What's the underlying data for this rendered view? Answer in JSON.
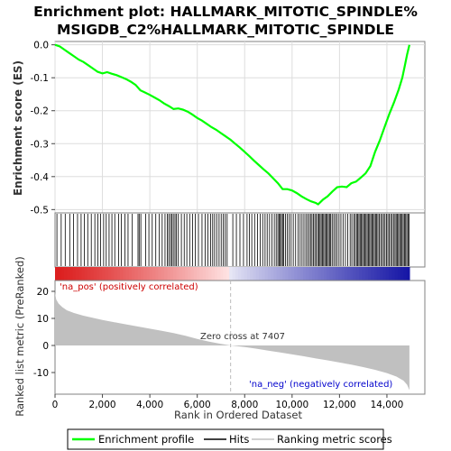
{
  "chart_data": {
    "type": "line",
    "title_line1": "Enrichment plot: HALLMARK_MITOTIC_SPINDLE%",
    "title_line2": "MSIGDB_C2%HALLMARK_MITOTIC_SPINDLE",
    "es_ylabel": "Enrichment score (ES)",
    "metric_ylabel": "Ranked list metric (PreRanked)",
    "xlabel": "Rank in Ordered Dataset",
    "xlim": [
      0,
      15600
    ],
    "es_ylim": [
      -0.51,
      0.01
    ],
    "metric_ylim": [
      -18,
      24
    ],
    "x_ticks": [
      0,
      2000,
      4000,
      6000,
      8000,
      10000,
      12000,
      14000
    ],
    "x_tick_labels": [
      "0",
      "2,000",
      "4,000",
      "6,000",
      "8,000",
      "10,000",
      "12,000",
      "14,000"
    ],
    "es_ticks": [
      0.0,
      -0.1,
      -0.2,
      -0.3,
      -0.4,
      -0.5
    ],
    "es_tick_labels": [
      "0.0",
      "-0.1",
      "-0.2",
      "-0.3",
      "-0.4",
      "-0.5"
    ],
    "metric_ticks": [
      20,
      10,
      0,
      -10
    ],
    "metric_tick_labels": [
      "20",
      "10",
      "0",
      "-10"
    ],
    "n_genes": 14950,
    "zero_cross": 7407,
    "zero_cross_label": "Zero cross at 7407",
    "pos_label": "'na_pos' (positively correlated)",
    "neg_label": "'na_neg' (negatively correlated)",
    "es_curve": [
      [
        0,
        0.0
      ],
      [
        200,
        -0.005
      ],
      [
        400,
        -0.015
      ],
      [
        600,
        -0.025
      ],
      [
        800,
        -0.035
      ],
      [
        1000,
        -0.045
      ],
      [
        1200,
        -0.052
      ],
      [
        1400,
        -0.062
      ],
      [
        1600,
        -0.072
      ],
      [
        1800,
        -0.082
      ],
      [
        2000,
        -0.087
      ],
      [
        2200,
        -0.083
      ],
      [
        2400,
        -0.088
      ],
      [
        2600,
        -0.092
      ],
      [
        2800,
        -0.098
      ],
      [
        3000,
        -0.104
      ],
      [
        3200,
        -0.112
      ],
      [
        3400,
        -0.122
      ],
      [
        3600,
        -0.138
      ],
      [
        3800,
        -0.145
      ],
      [
        4000,
        -0.152
      ],
      [
        4200,
        -0.16
      ],
      [
        4400,
        -0.168
      ],
      [
        4600,
        -0.178
      ],
      [
        4800,
        -0.186
      ],
      [
        5000,
        -0.195
      ],
      [
        5200,
        -0.193
      ],
      [
        5400,
        -0.197
      ],
      [
        5600,
        -0.203
      ],
      [
        5800,
        -0.212
      ],
      [
        6000,
        -0.222
      ],
      [
        6200,
        -0.23
      ],
      [
        6400,
        -0.24
      ],
      [
        6600,
        -0.25
      ],
      [
        6800,
        -0.258
      ],
      [
        7000,
        -0.268
      ],
      [
        7200,
        -0.278
      ],
      [
        7400,
        -0.288
      ],
      [
        7600,
        -0.3
      ],
      [
        7800,
        -0.312
      ],
      [
        8000,
        -0.325
      ],
      [
        8200,
        -0.338
      ],
      [
        8400,
        -0.352
      ],
      [
        8600,
        -0.365
      ],
      [
        8800,
        -0.378
      ],
      [
        9000,
        -0.39
      ],
      [
        9200,
        -0.405
      ],
      [
        9400,
        -0.42
      ],
      [
        9600,
        -0.438
      ],
      [
        9800,
        -0.438
      ],
      [
        10000,
        -0.442
      ],
      [
        10200,
        -0.45
      ],
      [
        10400,
        -0.46
      ],
      [
        10600,
        -0.468
      ],
      [
        10800,
        -0.475
      ],
      [
        11000,
        -0.48
      ],
      [
        11100,
        -0.484
      ],
      [
        11300,
        -0.47
      ],
      [
        11500,
        -0.46
      ],
      [
        11700,
        -0.445
      ],
      [
        11900,
        -0.432
      ],
      [
        12100,
        -0.43
      ],
      [
        12300,
        -0.432
      ],
      [
        12500,
        -0.42
      ],
      [
        12700,
        -0.415
      ],
      [
        12900,
        -0.403
      ],
      [
        13100,
        -0.39
      ],
      [
        13300,
        -0.368
      ],
      [
        13500,
        -0.325
      ],
      [
        13700,
        -0.29
      ],
      [
        13900,
        -0.25
      ],
      [
        14100,
        -0.21
      ],
      [
        14300,
        -0.175
      ],
      [
        14500,
        -0.135
      ],
      [
        14650,
        -0.1
      ],
      [
        14750,
        -0.065
      ],
      [
        14850,
        -0.03
      ],
      [
        14950,
        0.0
      ]
    ],
    "hits": [
      80,
      260,
      430,
      620,
      780,
      950,
      1100,
      1240,
      1380,
      1530,
      1680,
      1810,
      1920,
      2050,
      2160,
      2280,
      2400,
      2520,
      2680,
      2800,
      2950,
      3080,
      3260,
      3500,
      3550,
      3620,
      3820,
      3960,
      4100,
      4250,
      4400,
      4520,
      4640,
      4740,
      4800,
      4870,
      4930,
      4990,
      5060,
      5120,
      5200,
      5330,
      5450,
      5560,
      5680,
      5800,
      5920,
      6050,
      6200,
      6330,
      6450,
      6560,
      6650,
      6730,
      6820,
      6920,
      7010,
      7100,
      7180,
      7260,
      7500,
      7650,
      7800,
      7950,
      8100,
      8200,
      8300,
      8420,
      8540,
      8660,
      8760,
      8860,
      8950,
      9050,
      9150,
      9250,
      9330,
      9400,
      9450,
      9500,
      9550,
      9600,
      9650,
      9720,
      9800,
      9880,
      9960,
      10050,
      10150,
      10250,
      10340,
      10420,
      10500,
      10580,
      10650,
      10720,
      10780,
      10840,
      10900,
      10960,
      11020,
      11080,
      11130,
      11180,
      11230,
      11280,
      11330,
      11380,
      11430,
      11480,
      11530,
      11580,
      11630,
      11690,
      11760,
      11830,
      11900,
      11980,
      12060,
      12150,
      12250,
      12350,
      12450,
      12520,
      12600,
      12660,
      12720,
      12770,
      12820,
      12870,
      12920,
      12970,
      13020,
      13070,
      13120,
      13170,
      13220,
      13270,
      13320,
      13370,
      13420,
      13470,
      13520,
      13570,
      13620,
      13680,
      13740,
      13800,
      13860,
      13920,
      13980,
      14040,
      14100,
      14160,
      14220,
      14280,
      14340,
      14390,
      14440,
      14490,
      14540,
      14590,
      14640,
      14690,
      14740,
      14790,
      14840,
      14890,
      14930
    ],
    "metric_profile": [
      [
        0,
        19.5
      ],
      [
        50,
        17.0
      ],
      [
        150,
        15.5
      ],
      [
        300,
        14.2
      ],
      [
        500,
        13.0
      ],
      [
        800,
        12.0
      ],
      [
        1200,
        11.0
      ],
      [
        1600,
        10.2
      ],
      [
        2000,
        9.4
      ],
      [
        2500,
        8.6
      ],
      [
        3000,
        7.8
      ],
      [
        3500,
        7.0
      ],
      [
        4000,
        6.2
      ],
      [
        4500,
        5.4
      ],
      [
        5000,
        4.6
      ],
      [
        5500,
        3.6
      ],
      [
        6000,
        2.4
      ],
      [
        6500,
        1.4
      ],
      [
        7000,
        0.6
      ],
      [
        7407,
        0.0
      ],
      [
        8000,
        -0.6
      ],
      [
        8500,
        -1.2
      ],
      [
        9000,
        -1.9
      ],
      [
        9500,
        -2.6
      ],
      [
        10000,
        -3.3
      ],
      [
        10500,
        -4.0
      ],
      [
        11000,
        -4.8
      ],
      [
        11500,
        -5.5
      ],
      [
        12000,
        -6.3
      ],
      [
        12500,
        -7.1
      ],
      [
        13000,
        -8.0
      ],
      [
        13500,
        -9.0
      ],
      [
        14000,
        -10.2
      ],
      [
        14400,
        -11.5
      ],
      [
        14700,
        -13.0
      ],
      [
        14850,
        -14.5
      ],
      [
        14950,
        -16.5
      ]
    ]
  },
  "legend": {
    "items": [
      {
        "label": "Enrichment profile",
        "color": "#00ff00"
      },
      {
        "label": "Hits",
        "color": "#000000"
      },
      {
        "label": "Ranking metric scores",
        "color": "#c0c0c0"
      }
    ]
  },
  "colors": {
    "es_line": "#00ff00",
    "hit": "#000000",
    "metric_fill": "#c0c0c0",
    "pos_label": "#cc0000",
    "neg_label": "#0000cc",
    "zero_line": "#bbbbbb"
  }
}
